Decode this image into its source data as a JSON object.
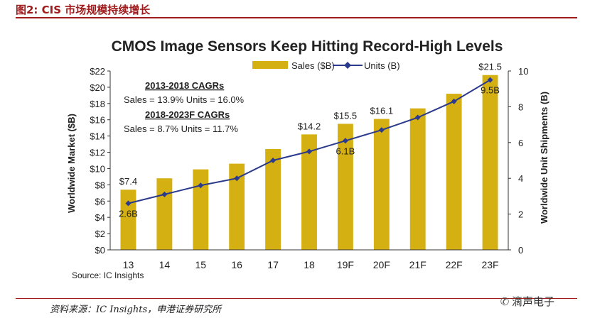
{
  "figure": {
    "label": "图2:  CIS 市场规模持续增长",
    "source_footer": "资料来源：IC Insights，申港证券研究所",
    "watermark": "滴声电子"
  },
  "chart_data": {
    "type": "bar",
    "title": "CMOS Image Sensors Keep Hitting Record-High Levels",
    "categories": [
      "13",
      "14",
      "15",
      "16",
      "17",
      "18",
      "19F",
      "20F",
      "21F",
      "22F",
      "23F"
    ],
    "series": [
      {
        "name": "Sales ($B)",
        "type": "bar",
        "axis": "left",
        "color": "#d4b012",
        "values": [
          7.4,
          8.8,
          9.9,
          10.6,
          12.4,
          14.2,
          15.5,
          16.1,
          17.4,
          19.2,
          21.5
        ]
      },
      {
        "name": "Units (B)",
        "type": "line",
        "axis": "right",
        "color": "#2b3a8c",
        "values": [
          2.6,
          3.1,
          3.6,
          4.0,
          5.0,
          5.5,
          6.1,
          6.7,
          7.4,
          8.3,
          9.5
        ]
      }
    ],
    "ylabel": "Worldwide Market ($B)",
    "y2label": "Worldwide Unit Shipments (B)",
    "ylim": [
      0,
      22
    ],
    "y2lim": [
      0,
      10
    ],
    "yticks": [
      "$0",
      "$2",
      "$4",
      "$6",
      "$8",
      "$10",
      "$12",
      "$14",
      "$16",
      "$18",
      "$20",
      "$22"
    ],
    "y2ticks": [
      "0",
      "2",
      "4",
      "6",
      "8",
      "10"
    ],
    "bar_labels": [
      {
        "index": 0,
        "text": "$7.4"
      },
      {
        "index": 5,
        "text": "$14.2"
      },
      {
        "index": 6,
        "text": "$15.5"
      },
      {
        "index": 7,
        "text": "$16.1"
      },
      {
        "index": 10,
        "text": "$21.5"
      }
    ],
    "point_labels": [
      {
        "index": 0,
        "text": "2.6B"
      },
      {
        "index": 6,
        "text": "6.1B"
      },
      {
        "index": 10,
        "text": "9.5B"
      }
    ],
    "annotations": [
      "2013-2018 CAGRs",
      "Sales = 13.9%  Units = 16.0%",
      "2018-2023F CAGRs",
      "Sales = 8.7%  Units = 11.7%"
    ],
    "source": "Source: IC Insights",
    "legend_position": "top-right",
    "grid": false
  }
}
